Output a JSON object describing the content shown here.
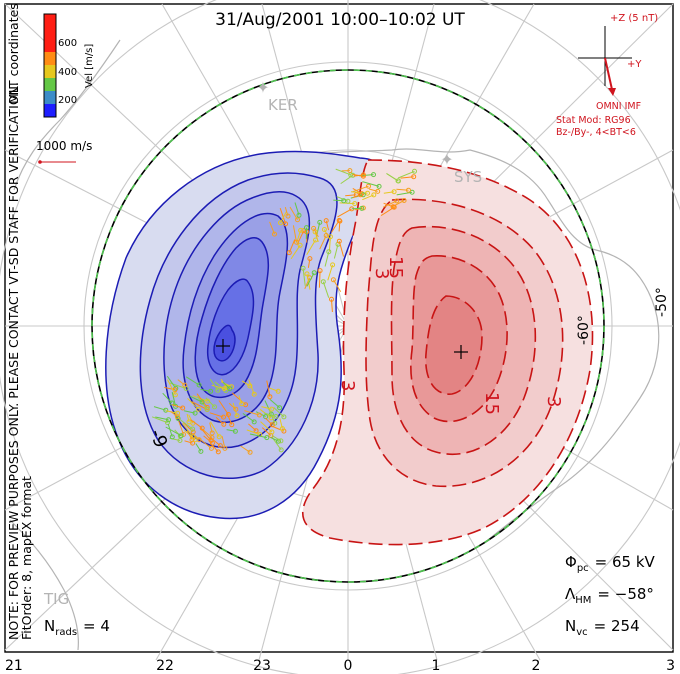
{
  "title": "31/Aug/2001 10:00–10:02 UT",
  "side_note": "NOTE: FOR PREVIEW PURPOSES ONLY. PLEASE CONTACT VT-SD STAFF FOR VERIFICATION.",
  "fit_note": "FitOrder: 8, mapEX format",
  "coordinates_label": "MLT coordinates",
  "colorbar": {
    "title": "Vel [m/s]",
    "ticks": [
      "600",
      "400",
      "200"
    ],
    "colors": [
      "#1e1eff",
      "#3c8cc8",
      "#64c846",
      "#e6c81e",
      "#ff8c14",
      "#ff1e14"
    ]
  },
  "scale_vector_label": "1000 m/s",
  "imf": {
    "z_label": "+Z (5 nT)",
    "y_label": "+Y",
    "source_label": "OMNI IMF",
    "model_label": "Stat Mod: RG96",
    "condition_label": "Bz-/By-, 4<BT<6"
  },
  "stations": {
    "ker": "KER",
    "sys": "SYS",
    "tig": "TIG"
  },
  "latitude_labels": [
    "-60°",
    "-50°"
  ],
  "contour_labels": {
    "neg_9": "-9",
    "pos_3_top": "3",
    "pos_15_top": "15",
    "pos_3_center": "3",
    "pos_15_bottom": "15",
    "pos_3_right": "3"
  },
  "stats": {
    "phi_pc_label": "Φ",
    "phi_pc_sub": "pc",
    "phi_pc_value": "= 65 kV",
    "lambda_hm_label": "Λ",
    "lambda_hm_sub": "HM",
    "lambda_hm_value": "= −58°",
    "n_vc_label": "N",
    "n_vc_sub": "vc",
    "n_vc_value": "= 254",
    "n_rads_label": "N",
    "n_rads_sub": "rads",
    "n_rads_value": "= 4"
  },
  "mlt_ticks": [
    "21",
    "22",
    "23",
    "0",
    "1",
    "2",
    "3"
  ],
  "colors": {
    "negative_cell": "#1c1cb4",
    "positive_cell": "#c81414",
    "hm_boundary": "#4ec24e",
    "grid": "#c8c8c8",
    "coast": "#b4b4b4"
  }
}
